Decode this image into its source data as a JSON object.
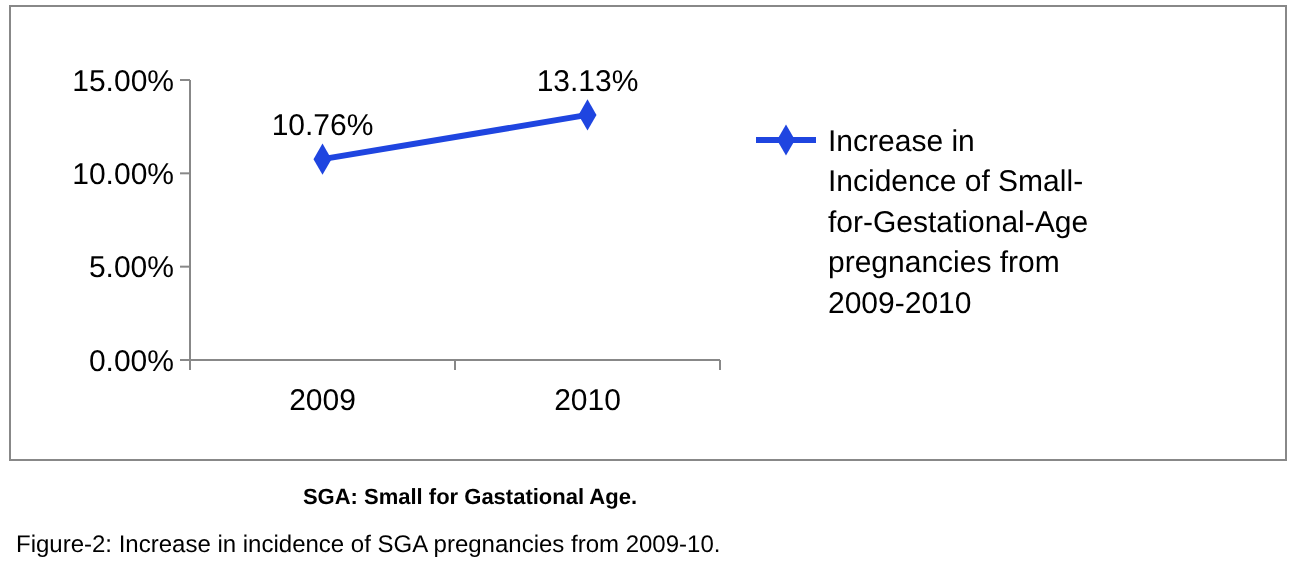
{
  "chart_data": {
    "type": "line",
    "categories": [
      "2009",
      "2010"
    ],
    "series": [
      {
        "name": "Increase in Incidence of Small-for-Gestational-Age pregnancies from 2009-2010",
        "color": "#1f45e0",
        "values": [
          10.76,
          13.13
        ],
        "value_labels": [
          "10.76%",
          "13.13%"
        ]
      }
    ],
    "ylim": [
      0,
      15
    ],
    "yticks": [
      {
        "value": 0,
        "label": "0.00%"
      },
      {
        "value": 5,
        "label": "5.00%"
      },
      {
        "value": 10,
        "label": "10.00%"
      },
      {
        "value": 15,
        "label": "15.00%"
      }
    ],
    "marker": "diamond",
    "line_style": "solid",
    "legend": "right",
    "annotations": [
      "SGA: Small for Gastational Age.",
      "Figure-2: Increase in incidence of SGA pregnancies from 2009-10."
    ]
  }
}
